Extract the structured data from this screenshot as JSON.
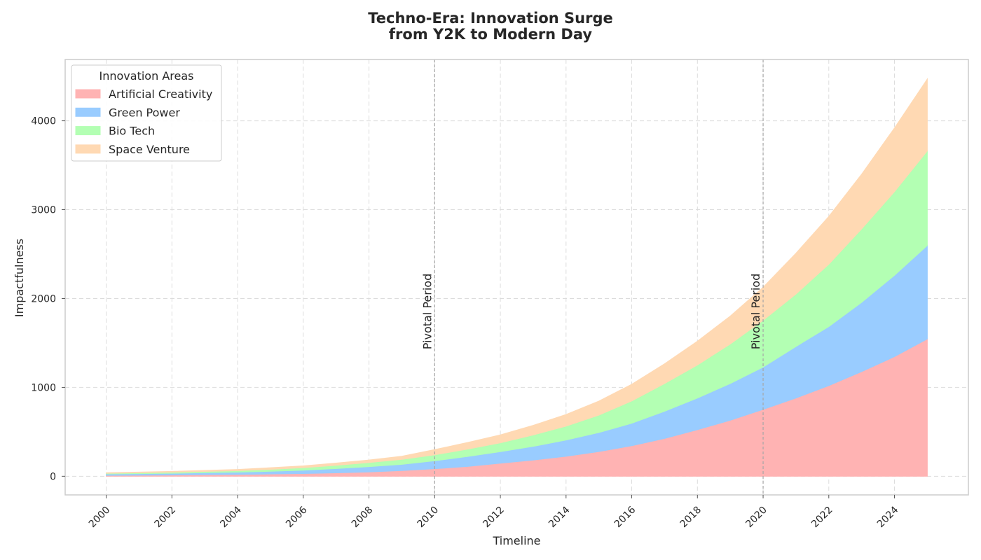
{
  "chart_data": {
    "type": "area",
    "stacked": true,
    "title_lines": [
      "Techno-Era: Innovation Surge",
      "from Y2K to Modern Day"
    ],
    "xlabel": "Timeline",
    "ylabel": "Impactfulness",
    "xlim": [
      1998.75,
      2026.25
    ],
    "ylim": [
      -210,
      4690
    ],
    "x_ticks": [
      2000,
      2002,
      2004,
      2006,
      2008,
      2010,
      2012,
      2014,
      2016,
      2018,
      2020,
      2022,
      2024
    ],
    "y_ticks": [
      0,
      1000,
      2000,
      3000,
      4000
    ],
    "grid": true,
    "legend": {
      "title": "Innovation Areas",
      "placement": "top-left"
    },
    "x": [
      2000,
      2001,
      2002,
      2003,
      2004,
      2005,
      2006,
      2007,
      2008,
      2009,
      2010,
      2011,
      2012,
      2013,
      2014,
      2015,
      2016,
      2017,
      2018,
      2019,
      2020,
      2021,
      2022,
      2023,
      2024,
      2025
    ],
    "series": [
      {
        "name": "Artificial Creativity",
        "color": "#ffb3b3",
        "values": [
          10,
          12,
          14,
          17,
          20,
          25,
          30,
          38,
          48,
          64,
          84,
          110,
          146,
          182,
          224,
          277,
          343,
          425,
          523,
          630,
          752,
          880,
          1020,
          1177,
          1346,
          1545
        ]
      },
      {
        "name": "Green Power",
        "color": "#99ccff",
        "values": [
          15,
          17,
          19,
          23,
          26,
          31,
          38,
          48,
          60,
          70,
          90,
          112,
          130,
          154,
          183,
          215,
          253,
          306,
          357,
          413,
          476,
          580,
          664,
          780,
          915,
          1052
        ]
      },
      {
        "name": "Bio Tech",
        "color": "#b3ffb3",
        "values": [
          8,
          10,
          12,
          14,
          17,
          22,
          28,
          37,
          46,
          56,
          67,
          83,
          100,
          128,
          157,
          196,
          251,
          312,
          372,
          445,
          527,
          590,
          702,
          826,
          942,
          1064
        ]
      },
      {
        "name": "Space Venture",
        "color": "#ffd9b3",
        "values": [
          7,
          8,
          10,
          12,
          14,
          18,
          21,
          25,
          29,
          35,
          59,
          75,
          90,
          109,
          131,
          158,
          188,
          223,
          268,
          315,
          372,
          460,
          538,
          617,
          717,
          810
        ]
      }
    ],
    "annotations": [
      {
        "x": 2010,
        "text": "Pivotal Period",
        "line": "dashed"
      },
      {
        "x": 2020,
        "text": "Pivotal Period",
        "line": "dashed"
      }
    ]
  }
}
